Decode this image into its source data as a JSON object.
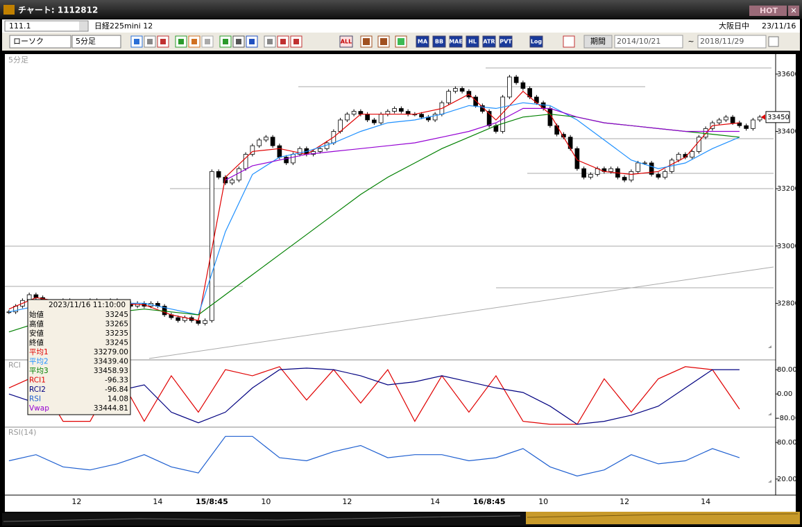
{
  "window": {
    "title": "チャート: 1112812",
    "hot": "HOT"
  },
  "toolbar": {
    "symbol": "111.1",
    "name": "日経225mini 12",
    "session": "大阪日中",
    "date": "23/11/16",
    "chart_type": "ローソク",
    "interval": "5分足",
    "buttons": [
      "ALL",
      "MA",
      "BB",
      "MAE",
      "HL",
      "ATR",
      "PVT",
      "Log"
    ],
    "period_label": "期間",
    "from": "2014/10/21",
    "tilde": "~",
    "to": "2018/11/29"
  },
  "info_box": {
    "datetime": "2023/11/16  11:10:00",
    "rows": [
      {
        "label": "始値",
        "value": "33245",
        "color": "#000000"
      },
      {
        "label": "高値",
        "value": "33265",
        "color": "#000000"
      },
      {
        "label": "安値",
        "value": "33235",
        "color": "#000000"
      },
      {
        "label": "終値",
        "value": "33245",
        "color": "#000000"
      },
      {
        "label": "平均1",
        "value": "33279.00",
        "color": "#e00000"
      },
      {
        "label": "平均2",
        "value": "33439.40",
        "color": "#1e90ff"
      },
      {
        "label": "平均3",
        "value": "33458.93",
        "color": "#008000"
      },
      {
        "label": "RCI1",
        "value": "-96.33",
        "color": "#e00000"
      },
      {
        "label": "RCI2",
        "value": "-96.84",
        "color": "#000080"
      },
      {
        "label": "RSI",
        "value": "14.08",
        "color": "#1e5fd0"
      },
      {
        "label": "Vwap",
        "value": "33444.81",
        "color": "#9400d3"
      }
    ]
  },
  "chart_data": [
    {
      "type": "candlestick",
      "label": "5分足",
      "categories": [
        null,
        null,
        null,
        null,
        null,
        null,
        null,
        null,
        null,
        null,
        "12",
        null,
        null,
        null,
        null,
        null,
        null,
        null,
        null,
        null,
        null,
        null,
        "14",
        null,
        null,
        null,
        null,
        null,
        null,
        null,
        "15/8:45",
        null,
        null,
        null,
        null,
        null,
        null,
        null,
        "10",
        null,
        null,
        null,
        null,
        null,
        null,
        null,
        null,
        null,
        null,
        null,
        "12",
        null,
        null,
        null,
        null,
        null,
        null,
        null,
        null,
        null,
        null,
        null,
        null,
        "14",
        null,
        null,
        null,
        null,
        null,
        null,
        null,
        "16/8:45",
        null,
        null,
        null,
        null,
        null,
        null,
        null,
        "10",
        null,
        null,
        null,
        null,
        null,
        null,
        null,
        null,
        null,
        null,
        null,
        "12",
        null,
        null,
        null,
        null,
        null,
        null,
        null,
        null,
        null,
        null,
        null,
        "14",
        null,
        null,
        null,
        null,
        null,
        null,
        null,
        null
      ],
      "close": [
        32770,
        32790,
        32810,
        32830,
        32820,
        32800,
        32790,
        32800,
        32810,
        32800,
        32790,
        32800,
        32810,
        32790,
        32800,
        32810,
        32800,
        32800,
        32790,
        32800,
        32790,
        32800,
        32790,
        32760,
        32750,
        32740,
        32750,
        32740,
        32730,
        32740,
        33260,
        33240,
        33220,
        33230,
        33270,
        33320,
        33350,
        33370,
        33380,
        33350,
        33310,
        33290,
        33320,
        33340,
        33320,
        33330,
        33340,
        33360,
        33400,
        33440,
        33460,
        33470,
        33460,
        33440,
        33430,
        33460,
        33470,
        33480,
        33470,
        33460,
        33460,
        33450,
        33440,
        33460,
        33500,
        33540,
        33550,
        33540,
        33520,
        33490,
        33470,
        33420,
        33400,
        33520,
        33590,
        33570,
        33550,
        33520,
        33500,
        33480,
        33420,
        33390,
        33380,
        33340,
        33270,
        33240,
        33250,
        33270,
        33260,
        33270,
        33240,
        33230,
        33260,
        33290,
        33290,
        33250,
        33240,
        33260,
        33300,
        33320,
        33310,
        33330,
        33380,
        33410,
        33430,
        33440,
        33450,
        33430,
        33420,
        33410,
        33440,
        33450
      ],
      "overlay_x": [
        0,
        4,
        8,
        12,
        16,
        20,
        24,
        28,
        32,
        36,
        40,
        44,
        48,
        52,
        56,
        60,
        64,
        68,
        72,
        76,
        80,
        84,
        88,
        92,
        96,
        100,
        104,
        108
      ],
      "overlays": [
        {
          "color": "#e00000",
          "values": [
            32780,
            32820,
            32805,
            32800,
            32800,
            32795,
            32760,
            32740,
            33240,
            33330,
            33340,
            33320,
            33380,
            33460,
            33460,
            33460,
            33480,
            33530,
            33440,
            33540,
            33460,
            33300,
            33260,
            33250,
            33260,
            33310,
            33420,
            33430
          ]
        },
        {
          "color": "#1e90ff",
          "values": [
            32770,
            32790,
            32800,
            32800,
            32800,
            32800,
            32780,
            32760,
            33050,
            33250,
            33310,
            33330,
            33360,
            33400,
            33430,
            33440,
            33460,
            33490,
            33480,
            33500,
            33490,
            33440,
            33370,
            33300,
            33270,
            33290,
            33340,
            33380
          ]
        },
        {
          "color": "#008000",
          "values": [
            32700,
            32730,
            32750,
            32760,
            32770,
            32780,
            32770,
            32760,
            32830,
            32900,
            32970,
            33040,
            33110,
            33180,
            33240,
            33290,
            33340,
            33380,
            33420,
            33450,
            33460,
            33450,
            33430,
            33420,
            33410,
            33400,
            33390,
            33380
          ]
        },
        {
          "color": "#9400d3",
          "values": [
            null,
            null,
            null,
            null,
            null,
            null,
            null,
            null,
            33230,
            33280,
            33300,
            33320,
            33330,
            33340,
            33350,
            33360,
            33380,
            33400,
            33430,
            33480,
            33480,
            33450,
            33430,
            33420,
            33410,
            33400,
            33400,
            33400
          ]
        }
      ],
      "ylim": [
        32605,
        33665
      ],
      "yticks": [
        32800,
        33000,
        33200,
        33400,
        33600
      ],
      "last_price": 33450,
      "last_color": "#e00000"
    },
    {
      "type": "line",
      "label": "RCI",
      "x": [
        0,
        4,
        8,
        12,
        16,
        20,
        24,
        28,
        32,
        36,
        40,
        44,
        48,
        52,
        56,
        60,
        64,
        68,
        72,
        76,
        80,
        84,
        88,
        92,
        96,
        100,
        104,
        108
      ],
      "series": [
        {
          "color": "#e00000",
          "values": [
            20,
            60,
            -90,
            -90,
            70,
            -90,
            60,
            -60,
            80,
            60,
            90,
            -20,
            80,
            -30,
            80,
            -90,
            60,
            -60,
            60,
            -90,
            -100,
            -100,
            50,
            -60,
            50,
            90,
            80,
            -50
          ]
        },
        {
          "color": "#000080",
          "values": [
            0,
            -30,
            -40,
            -20,
            10,
            30,
            -60,
            -95,
            -60,
            20,
            80,
            85,
            80,
            60,
            30,
            40,
            60,
            40,
            20,
            5,
            -40,
            -100,
            -90,
            -70,
            -40,
            20,
            80,
            80
          ]
        }
      ],
      "ylim": [
        -107,
        110
      ],
      "yticks": [
        {
          "value": 80,
          "label": "80.00"
        },
        {
          "value": 0,
          "label": "0.00"
        },
        {
          "value": -80,
          "label": "-80.00"
        }
      ]
    },
    {
      "type": "line",
      "label": "RSI(14)",
      "x": [
        0,
        4,
        8,
        12,
        16,
        20,
        24,
        28,
        32,
        36,
        40,
        44,
        48,
        52,
        56,
        60,
        64,
        68,
        72,
        76,
        80,
        84,
        88,
        92,
        96,
        100,
        104,
        108
      ],
      "series": [
        {
          "color": "#1e5fd0",
          "values": [
            50,
            60,
            40,
            35,
            45,
            60,
            40,
            30,
            90,
            90,
            55,
            50,
            65,
            75,
            55,
            60,
            60,
            50,
            55,
            70,
            40,
            25,
            35,
            60,
            45,
            50,
            70,
            55
          ]
        }
      ],
      "ylim": [
        -4,
        104
      ],
      "yticks": [
        {
          "value": 80,
          "label": "80.00"
        },
        {
          "value": 20,
          "label": "20.00"
        }
      ]
    }
  ]
}
